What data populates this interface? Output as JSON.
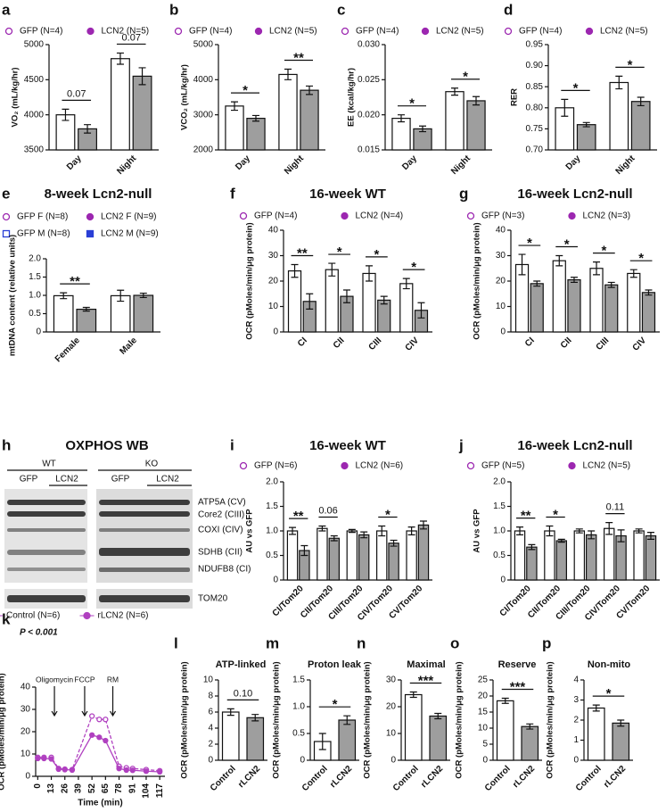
{
  "chart_data": [
    {
      "label": "a",
      "type": "bar",
      "ylabel": "VO₂ (mL/kg/hr)",
      "categories": [
        "Day",
        "Night"
      ],
      "series": [
        {
          "name": "GFP (N=4)",
          "color": "#ffffff",
          "marker": "circle-open",
          "marker_color": "#9c27b0",
          "values": [
            4000,
            4800
          ],
          "errors": [
            80,
            80
          ]
        },
        {
          "name": "LCN2 (N=5)",
          "color": "#9e9e9e",
          "marker": "circle",
          "marker_color": "#9c27b0",
          "values": [
            3800,
            4550
          ],
          "errors": [
            60,
            120
          ]
        }
      ],
      "ylim": [
        3500,
        5000
      ],
      "yticks": [
        3500,
        4000,
        4500,
        5000
      ],
      "annotations": [
        {
          "text": "0.07",
          "category": 0
        },
        {
          "text": "0.07",
          "category": 1
        }
      ]
    },
    {
      "label": "b",
      "type": "bar",
      "ylabel": "VCO₂ (mL/kg/hr)",
      "categories": [
        "Day",
        "Night"
      ],
      "series": [
        {
          "name": "GFP (N=4)",
          "color": "#ffffff",
          "marker": "circle-open",
          "marker_color": "#9c27b0",
          "values": [
            3250,
            4150
          ],
          "errors": [
            120,
            150
          ]
        },
        {
          "name": "LCN2 (N=5)",
          "color": "#9e9e9e",
          "marker": "circle",
          "marker_color": "#9c27b0",
          "values": [
            2900,
            3700
          ],
          "errors": [
            80,
            120
          ]
        }
      ],
      "ylim": [
        2000,
        5000
      ],
      "yticks": [
        2000,
        3000,
        4000,
        5000
      ],
      "annotations": [
        {
          "text": "*",
          "category": 0
        },
        {
          "text": "**",
          "category": 1
        }
      ]
    },
    {
      "label": "c",
      "type": "bar",
      "ylabel": "EE (kcal/kg/hr)",
      "categories": [
        "Day",
        "Night"
      ],
      "series": [
        {
          "name": "GFP (N=4)",
          "color": "#ffffff",
          "marker": "circle-open",
          "marker_color": "#9c27b0",
          "values": [
            0.0195,
            0.0233
          ],
          "errors": [
            0.0005,
            0.0005
          ]
        },
        {
          "name": "LCN2 (N=5)",
          "color": "#9e9e9e",
          "marker": "circle",
          "marker_color": "#9c27b0",
          "values": [
            0.018,
            0.022
          ],
          "errors": [
            0.0004,
            0.0006
          ]
        }
      ],
      "ylim": [
        0.015,
        0.03
      ],
      "yticks": [
        0.015,
        {
          "value": 0.02,
          "label": "0.020"
        },
        0.025,
        {
          "value": 0.03,
          "label": "0.030"
        }
      ],
      "annotations": [
        {
          "text": "*",
          "category": 0
        },
        {
          "text": "*",
          "category": 1
        }
      ]
    },
    {
      "label": "d",
      "type": "bar",
      "ylabel": "RER",
      "categories": [
        "Day",
        "Night"
      ],
      "series": [
        {
          "name": "GFP (N=4)",
          "color": "#ffffff",
          "marker": "circle-open",
          "marker_color": "#9c27b0",
          "values": [
            0.8,
            0.86
          ],
          "errors": [
            0.02,
            0.015
          ]
        },
        {
          "name": "LCN2 (N=5)",
          "color": "#9e9e9e",
          "marker": "circle",
          "marker_color": "#9c27b0",
          "values": [
            0.76,
            0.815
          ],
          "errors": [
            0.005,
            0.01
          ]
        }
      ],
      "ylim": [
        0.7,
        0.95
      ],
      "yticks": [
        {
          "value": 0.7,
          "label": "0.70"
        },
        0.75,
        {
          "value": 0.8,
          "label": "0.80"
        },
        0.85,
        {
          "value": 0.9,
          "label": "0.90"
        },
        0.95
      ],
      "annotations": [
        {
          "text": "*",
          "category": 0
        },
        {
          "text": "*",
          "category": 1
        }
      ]
    },
    {
      "label": "e",
      "type": "bar",
      "title": "8-week Lcn2-null",
      "ylabel": "mtDNA content (relative units)",
      "categories": [
        "Female",
        "Male"
      ],
      "series": [
        {
          "name": "GFP F (N=8)",
          "color": "#ffffff",
          "marker": "circle-open",
          "marker_color": "#9c27b0",
          "values": [
            0.99,
            null
          ],
          "errors": [
            0.08,
            null
          ]
        },
        {
          "name": "LCN2 F (N=9)",
          "color": "#9e9e9e",
          "marker": "circle",
          "marker_color": "#9c27b0",
          "values": [
            0.62,
            null
          ],
          "errors": [
            0.05,
            null
          ]
        },
        {
          "name": "GFP M (N=8)",
          "color": "#ffffff",
          "marker": "square-open",
          "marker_color": "#2a3fd6",
          "values": [
            null,
            0.99
          ],
          "errors": [
            null,
            0.15
          ]
        },
        {
          "name": "LCN2 M (N=9)",
          "color": "#9e9e9e",
          "marker": "square",
          "marker_color": "#2a3fd6",
          "values": [
            null,
            1.0
          ],
          "errors": [
            null,
            0.06
          ]
        }
      ],
      "ylim": [
        0,
        2
      ],
      "yticks": [
        0,
        0.5,
        {
          "value": 1,
          "label": "1.0"
        },
        1.5,
        {
          "value": 2,
          "label": "2.0"
        }
      ],
      "annotations": [
        {
          "text": "**",
          "category": 0
        }
      ]
    },
    {
      "label": "f",
      "type": "bar",
      "title": "16-week WT",
      "ylabel": "OCR (pMoles/min/μg protein)",
      "categories": [
        "CI",
        "CII",
        "CIII",
        "CIV"
      ],
      "series": [
        {
          "name": "GFP (N=4)",
          "color": "#ffffff",
          "marker": "circle-open",
          "marker_color": "#9c27b0",
          "values": [
            24,
            24.5,
            23,
            19
          ],
          "errors": [
            2.5,
            2.5,
            3,
            2
          ]
        },
        {
          "name": "LCN2 (N=4)",
          "color": "#9e9e9e",
          "marker": "circle",
          "marker_color": "#9c27b0",
          "values": [
            12,
            14,
            12.5,
            8.5
          ],
          "errors": [
            3,
            2.5,
            1.5,
            3
          ]
        }
      ],
      "ylim": [
        0,
        40
      ],
      "yticks": [
        0,
        10,
        20,
        30,
        40
      ],
      "annotations": [
        {
          "text": "**",
          "category": 0
        },
        {
          "text": "*",
          "category": 1
        },
        {
          "text": "*",
          "category": 2
        },
        {
          "text": "*",
          "category": 3
        }
      ]
    },
    {
      "label": "g",
      "type": "bar",
      "title": "16-week Lcn2-null",
      "ylabel": "OCR (pMoles/min/μg protein)",
      "categories": [
        "CI",
        "CII",
        "CIII",
        "CIV"
      ],
      "series": [
        {
          "name": "GFP (N=3)",
          "color": "#ffffff",
          "marker": "circle-open",
          "marker_color": "#9c27b0",
          "values": [
            26.5,
            28,
            25,
            23
          ],
          "errors": [
            4,
            2,
            2.5,
            1.5
          ]
        },
        {
          "name": "LCN2 (N=3)",
          "color": "#9e9e9e",
          "marker": "circle",
          "marker_color": "#9c27b0",
          "values": [
            19,
            20.5,
            18.5,
            15.5
          ],
          "errors": [
            1,
            1,
            1,
            1
          ]
        }
      ],
      "ylim": [
        0,
        40
      ],
      "yticks": [
        0,
        10,
        20,
        30,
        40
      ],
      "annotations": [
        {
          "text": "*",
          "category": 0
        },
        {
          "text": "*",
          "category": 1
        },
        {
          "text": "*",
          "category": 2
        },
        {
          "text": "*",
          "category": 3
        }
      ]
    },
    {
      "label": "i",
      "type": "bar",
      "title": "16-week WT",
      "ylabel": "AU vs GFP",
      "categories": [
        "CI/Tom20",
        "CII/Tom20",
        "CIII/Tom20",
        "CIV/Tom20",
        "CV/Tom20"
      ],
      "series": [
        {
          "name": "GFP (N=6)",
          "color": "#ffffff",
          "marker": "circle-open",
          "marker_color": "#9c27b0",
          "values": [
            1.0,
            1.05,
            1.0,
            1.0,
            1.0
          ],
          "errors": [
            0.07,
            0.05,
            0.03,
            0.1,
            0.08
          ]
        },
        {
          "name": "LCN2 (N=6)",
          "color": "#9e9e9e",
          "marker": "circle",
          "marker_color": "#9c27b0",
          "values": [
            0.6,
            0.85,
            0.92,
            0.75,
            1.12
          ],
          "errors": [
            0.1,
            0.05,
            0.06,
            0.06,
            0.08
          ]
        }
      ],
      "ylim": [
        0,
        2
      ],
      "yticks": [
        0,
        0.5,
        {
          "value": 1,
          "label": "1.0"
        },
        1.5,
        {
          "value": 2,
          "label": "2.0"
        }
      ],
      "annotations": [
        {
          "text": "**",
          "category": 0
        },
        {
          "text": "0.06",
          "category": 1
        },
        {
          "text": "*",
          "category": 3
        }
      ]
    },
    {
      "label": "j",
      "type": "bar",
      "title": "16-week Lcn2-null",
      "ylabel": "AU vs GFP",
      "categories": [
        "CI/Tom20",
        "CII/Tom20",
        "CIII/Tom20",
        "CIV/Tom20",
        "CV/Tom20"
      ],
      "series": [
        {
          "name": "GFP (N=5)",
          "color": "#ffffff",
          "marker": "circle-open",
          "marker_color": "#9c27b0",
          "values": [
            1.0,
            1.0,
            1.0,
            1.05,
            1.0
          ],
          "errors": [
            0.08,
            0.1,
            0.04,
            0.12,
            0.04
          ]
        },
        {
          "name": "LCN2 (N=5)",
          "color": "#9e9e9e",
          "marker": "circle",
          "marker_color": "#9c27b0",
          "values": [
            0.67,
            0.8,
            0.92,
            0.9,
            0.9
          ],
          "errors": [
            0.05,
            0.03,
            0.08,
            0.12,
            0.07
          ]
        }
      ],
      "ylim": [
        0,
        2
      ],
      "yticks": [
        0,
        0.5,
        {
          "value": 1,
          "label": "1.0"
        },
        1.5,
        {
          "value": 2,
          "label": "2.0"
        }
      ],
      "annotations": [
        {
          "text": "**",
          "category": 0
        },
        {
          "text": "*",
          "category": 1
        },
        {
          "text": "0.11",
          "category": 3
        }
      ]
    },
    {
      "label": "k",
      "type": "line",
      "ylabel": "OCR (pMoles/min/μg protein)",
      "xlabel": "Time (min)",
      "p_text": "P < 0.001",
      "x": [
        0,
        6,
        13,
        20,
        26,
        33,
        52,
        59,
        65,
        78,
        85,
        91,
        104,
        117
      ],
      "series": [
        {
          "name": "Control (N=6)",
          "color": "#b040c0",
          "style": "dashed",
          "marker": "circle-open",
          "values": [
            8.5,
            8.5,
            8.5,
            3.5,
            3.2,
            3,
            27,
            25.5,
            25.5,
            4.5,
            3.8,
            3.5,
            3,
            2.5
          ]
        },
        {
          "name": "rLCN2 (N=6)",
          "color": "#b040c0",
          "style": "solid",
          "marker": "circle",
          "values": [
            8,
            8,
            7.8,
            3.2,
            3,
            2.8,
            18.5,
            17.5,
            16,
            3.5,
            2.8,
            2.7,
            2.3,
            2
          ]
        }
      ],
      "xlim": [
        -2,
        122
      ],
      "xticks": [
        0,
        13,
        26,
        39,
        52,
        65,
        78,
        91,
        104,
        117
      ],
      "ylim": [
        0,
        40
      ],
      "yticks": [
        0,
        10,
        20,
        30,
        40
      ],
      "annotations": [
        {
          "text": "Oligomycin",
          "x": 16
        },
        {
          "text": "FCCP",
          "x": 45
        },
        {
          "text": "RM",
          "x": 72
        }
      ]
    },
    {
      "label": "l",
      "type": "bar",
      "title": "ATP-linked",
      "ylabel": "OCR (pMoles/min/μg protein)",
      "categories": [
        "Control",
        "rLCN2"
      ],
      "series": [
        {
          "colors": [
            "#ffffff",
            "#9e9e9e"
          ],
          "values": [
            6.0,
            5.3
          ],
          "errors": [
            0.4,
            0.4
          ]
        }
      ],
      "ylim": [
        0,
        10
      ],
      "yticks": [
        0,
        2,
        4,
        6,
        8,
        10
      ],
      "annotations": [
        {
          "text": "0.10"
        }
      ]
    },
    {
      "label": "m",
      "type": "bar",
      "title": "Proton leak",
      "ylabel": "OCR (pMoles/min/μg protein)",
      "categories": [
        "Control",
        "rLCN2"
      ],
      "series": [
        {
          "colors": [
            "#ffffff",
            "#9e9e9e"
          ],
          "values": [
            0.35,
            0.75
          ],
          "errors": [
            0.15,
            0.08
          ]
        }
      ],
      "ylim": [
        0,
        1.5
      ],
      "yticks": [
        0,
        0.5,
        {
          "value": 1,
          "label": "1.0"
        },
        1.5
      ],
      "annotations": [
        {
          "text": "*"
        }
      ]
    },
    {
      "label": "n",
      "type": "bar",
      "title": "Maximal",
      "ylabel": "OCR (pMoles/min/μg protein)",
      "categories": [
        "Control",
        "rLCN2"
      ],
      "series": [
        {
          "colors": [
            "#ffffff",
            "#9e9e9e"
          ],
          "values": [
            24.5,
            16.5
          ],
          "errors": [
            1,
            1
          ]
        }
      ],
      "ylim": [
        0,
        30
      ],
      "yticks": [
        0,
        10,
        20,
        30
      ],
      "annotations": [
        {
          "text": "***"
        }
      ]
    },
    {
      "label": "o",
      "type": "bar",
      "title": "Reserve",
      "ylabel": "OCR (pMoles/min/μg protein)",
      "categories": [
        "Control",
        "rLCN2"
      ],
      "series": [
        {
          "colors": [
            "#ffffff",
            "#9e9e9e"
          ],
          "values": [
            18.5,
            10.5
          ],
          "errors": [
            0.8,
            0.8
          ]
        }
      ],
      "ylim": [
        0,
        25
      ],
      "yticks": [
        0,
        5,
        10,
        15,
        20,
        25
      ],
      "annotations": [
        {
          "text": "***"
        }
      ]
    },
    {
      "label": "p",
      "type": "bar",
      "title": "Non-mito",
      "ylabel": "OCR (pMoles/min/μg protein)",
      "categories": [
        "Control",
        "rLCN2"
      ],
      "series": [
        {
          "colors": [
            "#ffffff",
            "#9e9e9e"
          ],
          "values": [
            2.6,
            1.85
          ],
          "errors": [
            0.15,
            0.15
          ]
        }
      ],
      "ylim": [
        0,
        4
      ],
      "yticks": [
        0,
        1,
        2,
        3,
        4
      ],
      "annotations": [
        {
          "text": "*"
        }
      ]
    }
  ],
  "blot": {
    "label": "h",
    "title": "OXPHOS WB",
    "groups": [
      "WT",
      "KO"
    ],
    "lanes": [
      "GFP",
      "LCN2",
      "GFP",
      "LCN2"
    ],
    "bands": [
      "ATP5A (CV)",
      "Core2 (CIII)",
      "COXI (CIV)",
      "SDHB (CII)",
      "NDUFB8 (CI)",
      "TOM20"
    ]
  }
}
